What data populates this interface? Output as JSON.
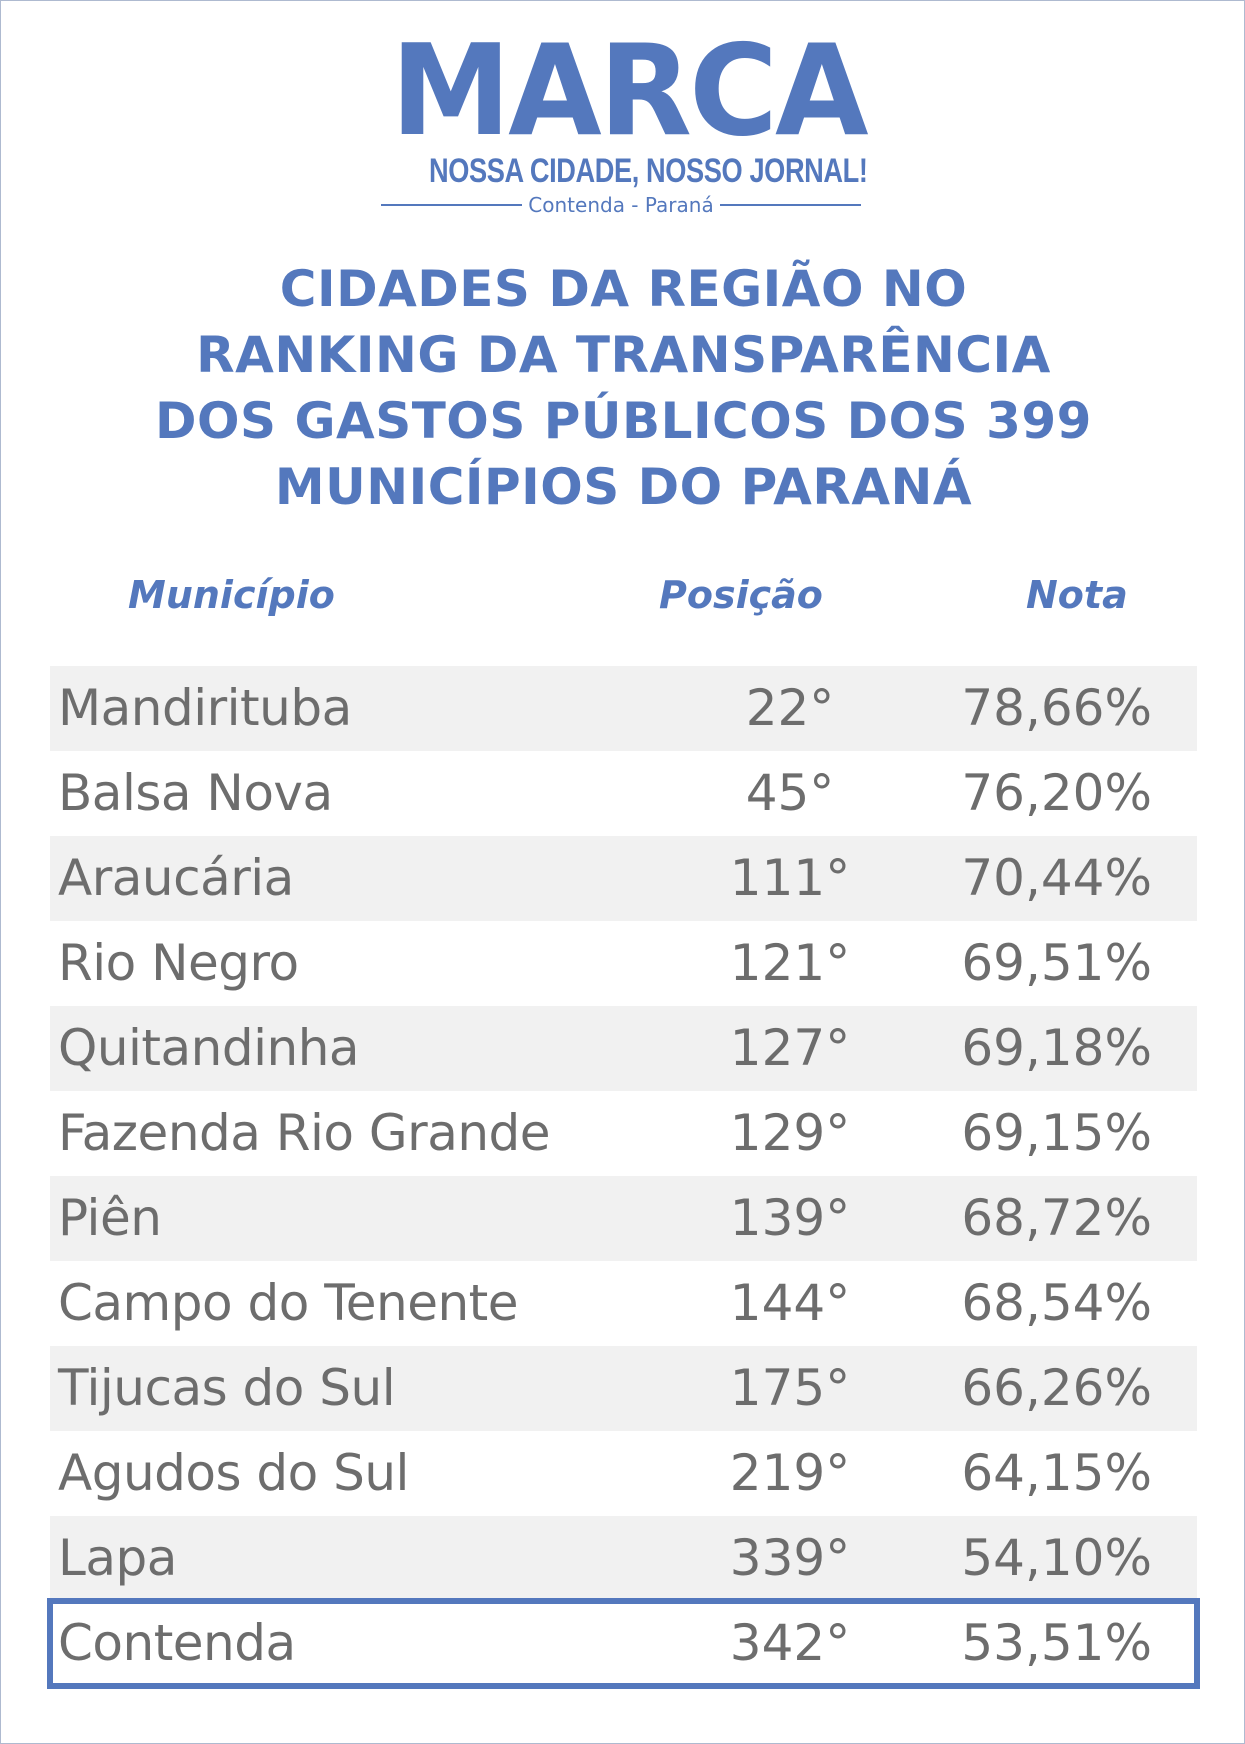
{
  "logo": {
    "word": "MARCA",
    "tagline": "NOSSA CIDADE, NOSSO JORNAL!",
    "place": "Contenda - Paraná"
  },
  "headline": {
    "lines": [
      "CIDADES DA REGIÃO NO",
      "RANKING DA TRANSPARÊNCIA",
      "DOS GASTOS PÚBLICOS DOS 399",
      "MUNICÍPIOS DO PARANÁ"
    ]
  },
  "table": {
    "columns": {
      "municipio": "Município",
      "posicao": "Posição",
      "nota": "Nota"
    },
    "rows": [
      {
        "municipio": "Mandirituba",
        "posicao": "22°",
        "nota": "78,66%"
      },
      {
        "municipio": "Balsa Nova",
        "posicao": "45°",
        "nota": "76,20%"
      },
      {
        "municipio": "Araucária",
        "posicao": "111°",
        "nota": "70,44%"
      },
      {
        "municipio": "Rio Negro",
        "posicao": "121°",
        "nota": "69,51%"
      },
      {
        "municipio": "Quitandinha",
        "posicao": "127°",
        "nota": "69,18%"
      },
      {
        "municipio": "Fazenda Rio Grande",
        "posicao": "129°",
        "nota": "69,15%"
      },
      {
        "municipio": "Piên",
        "posicao": "139°",
        "nota": "68,72%"
      },
      {
        "municipio": "Campo do Tenente",
        "posicao": "144°",
        "nota": "68,54%"
      },
      {
        "municipio": "Tijucas do Sul",
        "posicao": "175°",
        "nota": "66,26%"
      },
      {
        "municipio": "Agudos do Sul",
        "posicao": "219°",
        "nota": "64,15%"
      },
      {
        "municipio": "Lapa",
        "posicao": "339°",
        "nota": "54,10%"
      },
      {
        "municipio": "Contenda",
        "posicao": "342°",
        "nota": "53,51%"
      }
    ]
  },
  "colors": {
    "brand_blue": "#5478bd",
    "text_gray": "#6d6d6d",
    "row_shade": "#f1f1f1"
  }
}
